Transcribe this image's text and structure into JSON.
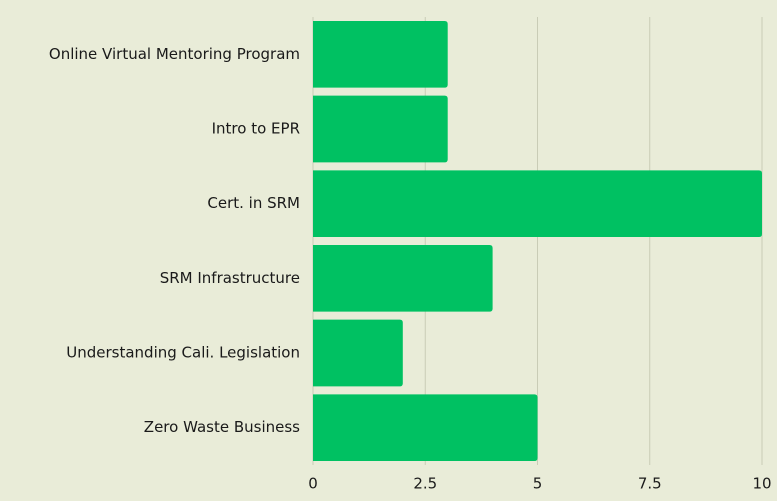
{
  "chart_data": {
    "type": "barh",
    "categories": [
      "Online Virtual Mentoring Program",
      "Intro to EPR",
      "Cert. in SRM",
      "SRM Infrastructure",
      "Understanding Cali. Legislation",
      "Zero Waste Business"
    ],
    "values": [
      3,
      3,
      10,
      4,
      2,
      5
    ],
    "color": "#00c162",
    "xlim": [
      0,
      10
    ],
    "xticks": [
      0,
      2.5,
      5,
      7.5,
      10
    ],
    "grid": true
  }
}
